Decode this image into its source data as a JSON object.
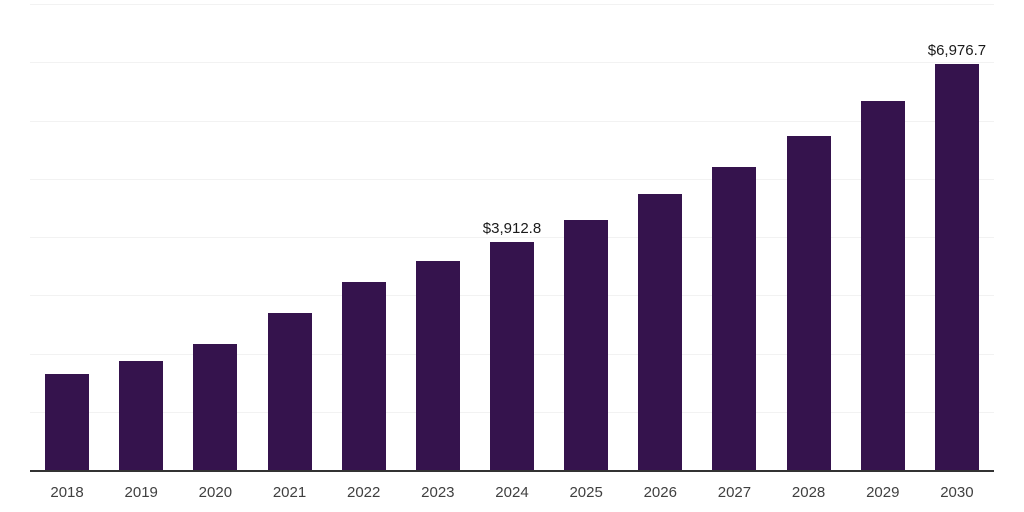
{
  "chart_data": {
    "type": "bar",
    "title": "",
    "xlabel": "",
    "ylabel": "",
    "categories": [
      "2018",
      "2019",
      "2020",
      "2021",
      "2022",
      "2023",
      "2024",
      "2025",
      "2026",
      "2027",
      "2028",
      "2029",
      "2030"
    ],
    "values": [
      1650,
      1870,
      2160,
      2700,
      3230,
      3590,
      3912.8,
      4290,
      4730,
      5200,
      5730,
      6330,
      6976.7
    ],
    "point_labels": [
      "",
      "",
      "",
      "",
      "",
      "",
      "$3,912.8",
      "",
      "",
      "",
      "",
      "",
      "$6,976.7"
    ],
    "ylim": [
      0,
      8000
    ],
    "grid_interval": 1000,
    "grid": "horizontal-only",
    "legend_position": "none",
    "y_tick_labels_visible": false
  },
  "colors": {
    "bar": "#35134d",
    "axis_line": "#333333",
    "gridline": "#f2f2f2",
    "tick_label": "#404040",
    "value_label": "#1a1a1a",
    "background": "#ffffff"
  }
}
